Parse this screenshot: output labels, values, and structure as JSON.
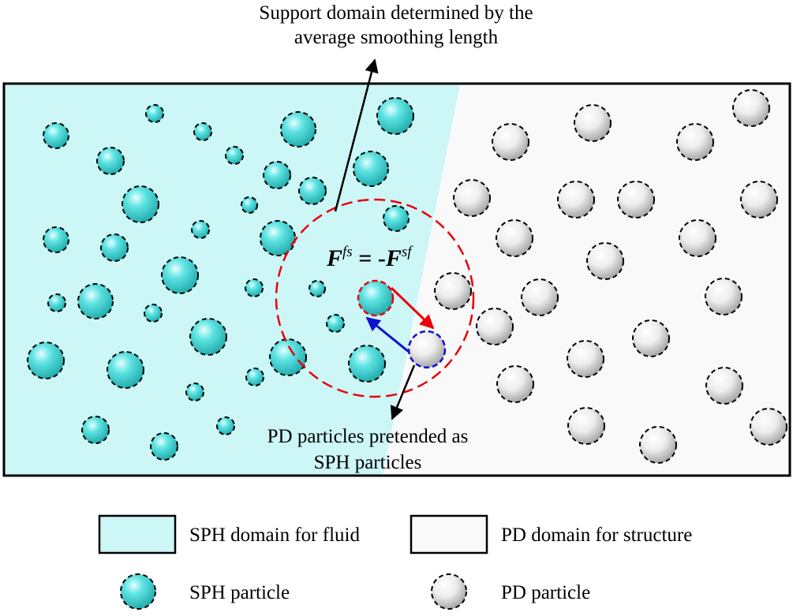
{
  "annotations": {
    "support_domain_line1": "Support domain determined by the",
    "support_domain_line2": "average smoothing length",
    "pd_pretend_line1": "PD particles pretended as",
    "pd_pretend_line2": "SPH particles"
  },
  "equation": {
    "lhs_base": "F",
    "lhs_sup": "fs",
    "equals": " = ",
    "minus": "-",
    "rhs_base": "F",
    "rhs_sup": "sf"
  },
  "legend": {
    "sph_domain": "SPH domain for fluid",
    "pd_domain": "PD domain for structure",
    "sph_particle": "SPH particle",
    "pd_particle": "PD particle"
  },
  "colors": {
    "sph_domain_fill": "#cdf6f6",
    "pd_domain_fill": "#f9f9f9",
    "sph_particle": "#39cccc",
    "pd_particle": "#e6e6e6",
    "support_circle": "#e8000b",
    "force_fs_arrow": "#e8000b",
    "force_sf_arrow": "#1010d0"
  }
}
